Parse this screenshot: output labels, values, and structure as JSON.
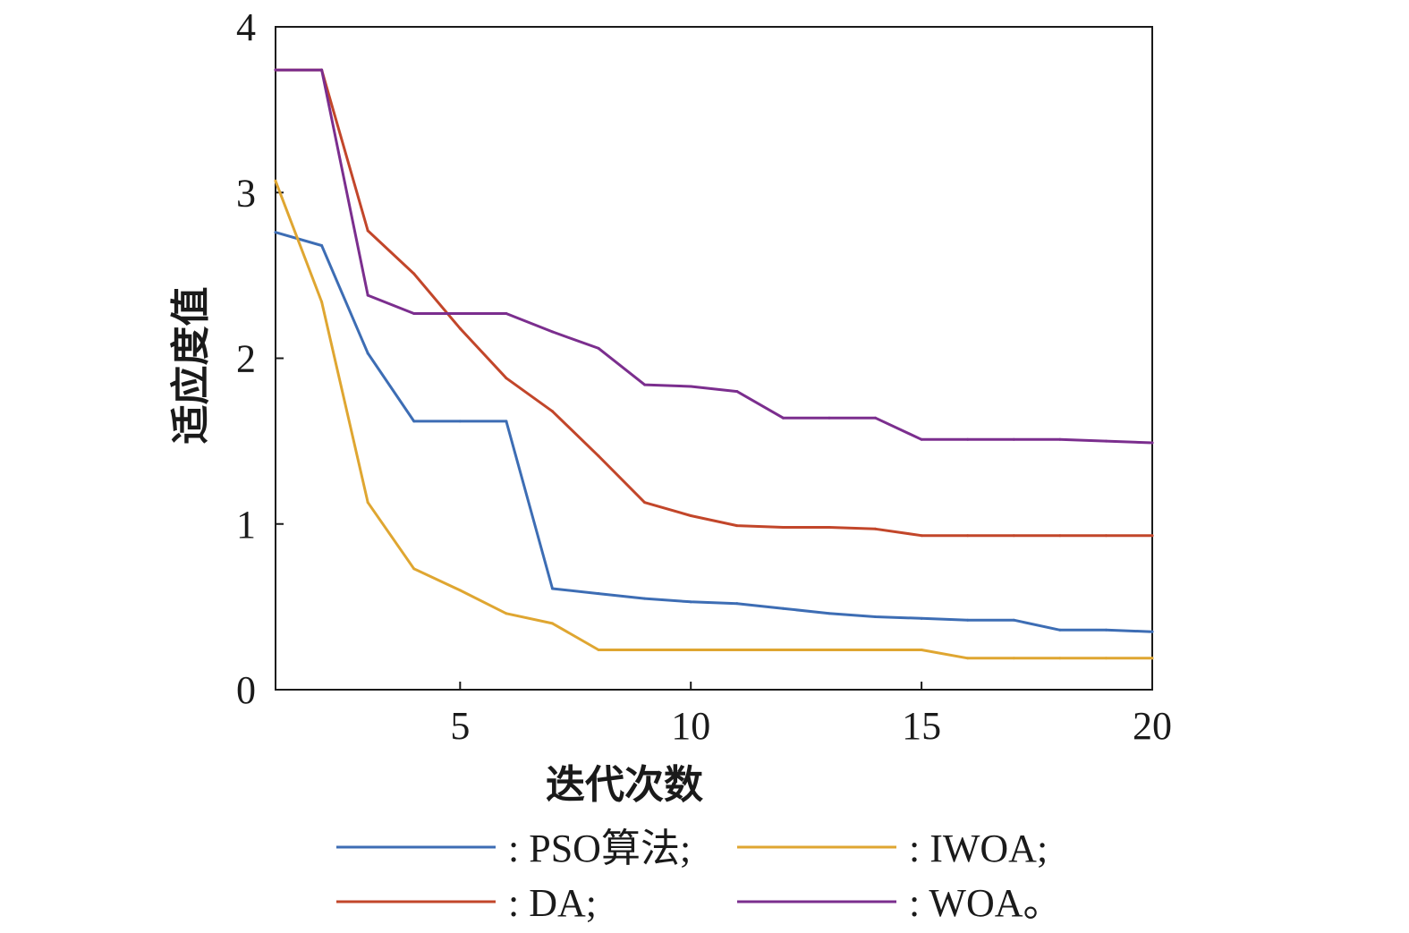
{
  "chart_data": {
    "type": "line",
    "xlabel": "迭代次数",
    "ylabel": "适应度值",
    "xlim": [
      1,
      20
    ],
    "ylim": [
      0,
      4
    ],
    "xticks": [
      5,
      10,
      15,
      20
    ],
    "yticks": [
      0,
      1,
      2,
      3,
      4
    ],
    "grid": false,
    "legend_position": "bottom",
    "series": [
      {
        "name": ": PSO算法;",
        "color": "#3d6db4",
        "x": [
          1,
          2,
          3,
          4,
          5,
          6,
          7,
          8,
          9,
          10,
          11,
          12,
          13,
          14,
          15,
          16,
          17,
          18,
          19,
          20
        ],
        "y": [
          2.76,
          2.68,
          2.03,
          1.62,
          1.62,
          1.62,
          0.61,
          0.58,
          0.55,
          0.53,
          0.52,
          0.49,
          0.46,
          0.44,
          0.43,
          0.42,
          0.42,
          0.36,
          0.36,
          0.35
        ]
      },
      {
        "name": ": IWOA;",
        "color": "#dfa631",
        "x": [
          1,
          2,
          3,
          4,
          5,
          6,
          7,
          8,
          9,
          10,
          11,
          12,
          13,
          14,
          15,
          16,
          17,
          18,
          19,
          20
        ],
        "y": [
          3.07,
          2.34,
          1.13,
          0.73,
          0.6,
          0.46,
          0.4,
          0.24,
          0.24,
          0.24,
          0.24,
          0.24,
          0.24,
          0.24,
          0.24,
          0.19,
          0.19,
          0.19,
          0.19,
          0.19
        ]
      },
      {
        "name": ": DA;",
        "color": "#c2462a",
        "x": [
          1,
          2,
          3,
          4,
          5,
          6,
          7,
          8,
          9,
          10,
          11,
          12,
          13,
          14,
          15,
          16,
          17,
          18,
          19,
          20
        ],
        "y": [
          3.74,
          3.74,
          2.77,
          2.51,
          2.18,
          1.88,
          1.68,
          1.41,
          1.13,
          1.05,
          0.99,
          0.98,
          0.98,
          0.97,
          0.93,
          0.93,
          0.93,
          0.93,
          0.93,
          0.93
        ]
      },
      {
        "name": ": WOA。",
        "color": "#7b2e8e",
        "x": [
          1,
          2,
          3,
          4,
          5,
          6,
          7,
          8,
          9,
          10,
          11,
          12,
          13,
          14,
          15,
          16,
          17,
          18,
          19,
          20
        ],
        "y": [
          3.74,
          3.74,
          2.38,
          2.27,
          2.27,
          2.27,
          2.16,
          2.06,
          1.84,
          1.83,
          1.8,
          1.64,
          1.64,
          1.64,
          1.51,
          1.51,
          1.51,
          1.51,
          1.5,
          1.49
        ]
      }
    ]
  }
}
